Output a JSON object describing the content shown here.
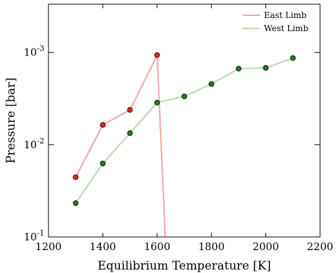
{
  "chart_data": {
    "type": "line",
    "title": "",
    "xlabel": "Equilibrium Temperature [K]",
    "ylabel": "Pressure [bar]",
    "xlim": [
      1200,
      2200
    ],
    "ylim": [
      0.1,
      0.0003
    ],
    "yscale": "log",
    "y_inverted": true,
    "grid": false,
    "legend_position": "top-right",
    "x_ticks": [
      {
        "value": 1200,
        "label": "1200"
      },
      {
        "value": 1400,
        "label": "1400"
      },
      {
        "value": 1600,
        "label": "1600"
      },
      {
        "value": 1800,
        "label": "1800"
      },
      {
        "value": 2000,
        "label": "2000"
      },
      {
        "value": 2200,
        "label": "2200"
      }
    ],
    "y_ticks": [
      {
        "value": 0.001,
        "base": "10",
        "exp": "-3"
      },
      {
        "value": 0.01,
        "base": "10",
        "exp": "-2"
      },
      {
        "value": 0.1,
        "base": "10",
        "exp": "-1"
      }
    ],
    "series": [
      {
        "name": "East Limb",
        "line_color": "#f4a3a3",
        "marker_color": "#e8241c",
        "x": [
          1300,
          1400,
          1500,
          1600
        ],
        "y": [
          0.0225,
          0.0061,
          0.0042,
          0.00107
        ],
        "trailing_segment_to": {
          "x": 1630,
          "y": 0.1
        }
      },
      {
        "name": "West Limb",
        "line_color": "#b5dca9",
        "marker_color": "#1a7f1a",
        "x": [
          1300,
          1400,
          1500,
          1600,
          1700,
          1800,
          1900,
          2000,
          2100
        ],
        "y": [
          0.043,
          0.016,
          0.0075,
          0.0035,
          0.003,
          0.0022,
          0.0015,
          0.00147,
          0.00115
        ]
      }
    ]
  }
}
